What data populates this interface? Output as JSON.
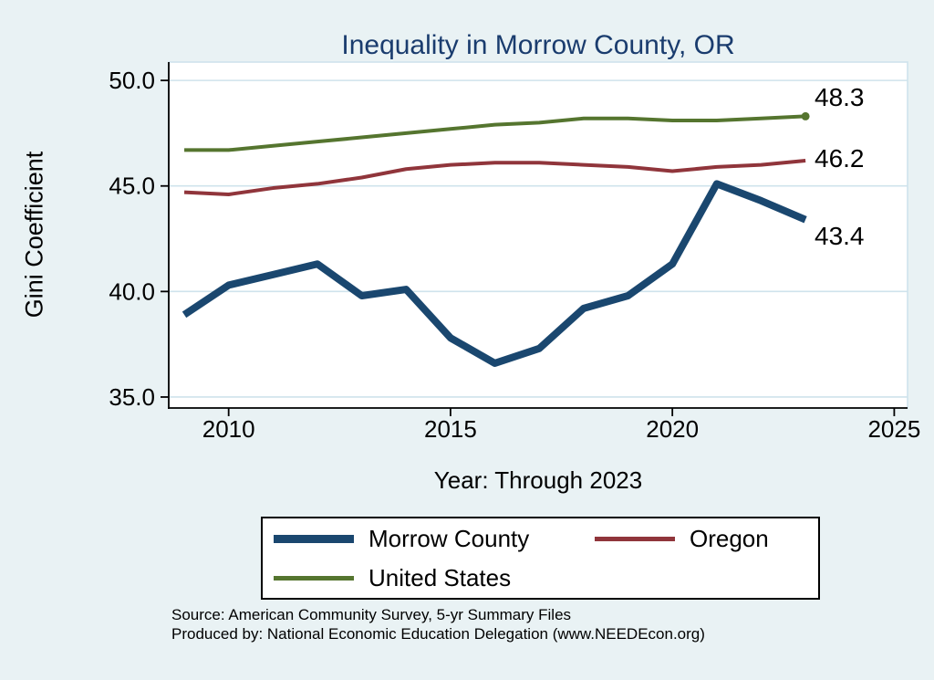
{
  "colors": {
    "background": "#e9f2f4",
    "title": "#1a3c6e",
    "grid": "#cfe3ec",
    "axis": "#000000",
    "plot_background": "#ffffff"
  },
  "chart_data": {
    "type": "line",
    "title": "Inequality in Morrow County, OR",
    "xlabel": "Year: Through 2023",
    "ylabel": "Gini Coefficient",
    "x": [
      2009,
      2010,
      2011,
      2012,
      2013,
      2014,
      2015,
      2016,
      2017,
      2018,
      2019,
      2020,
      2021,
      2022,
      2023
    ],
    "series": [
      {
        "name": "Morrow County",
        "color": "#1a476f",
        "line_width": 8,
        "end_label": "43.4",
        "end_marker": false,
        "values": [
          38.9,
          40.3,
          40.8,
          41.3,
          39.8,
          40.1,
          37.8,
          36.6,
          37.3,
          39.2,
          39.8,
          41.3,
          45.1,
          44.3,
          43.4
        ]
      },
      {
        "name": "Oregon",
        "color": "#90353b",
        "line_width": 4,
        "end_label": "46.2",
        "end_marker": false,
        "values": [
          44.7,
          44.6,
          44.9,
          45.1,
          45.4,
          45.8,
          46.0,
          46.1,
          46.1,
          46.0,
          45.9,
          45.7,
          45.9,
          46.0,
          46.2
        ]
      },
      {
        "name": "United States",
        "color": "#55752f",
        "line_width": 4,
        "end_label": "48.3",
        "end_marker": true,
        "values": [
          46.7,
          46.7,
          46.9,
          47.1,
          47.3,
          47.5,
          47.7,
          47.9,
          48.0,
          48.2,
          48.2,
          48.1,
          48.1,
          48.2,
          48.3
        ]
      }
    ],
    "xticks": [
      2010,
      2015,
      2020,
      2025
    ],
    "yticks": [
      "35.0",
      "40.0",
      "45.0",
      "50.0"
    ],
    "xlim": [
      2008.65,
      2025.3
    ],
    "ylim": [
      34.48,
      50.87
    ],
    "grid": "horizontal",
    "legend_position": "bottom"
  },
  "source": {
    "line1": "Source: American Community Survey, 5-yr Summary Files",
    "line2": "Produced by: National Economic Education Delegation (www.NEEDEcon.org)"
  }
}
